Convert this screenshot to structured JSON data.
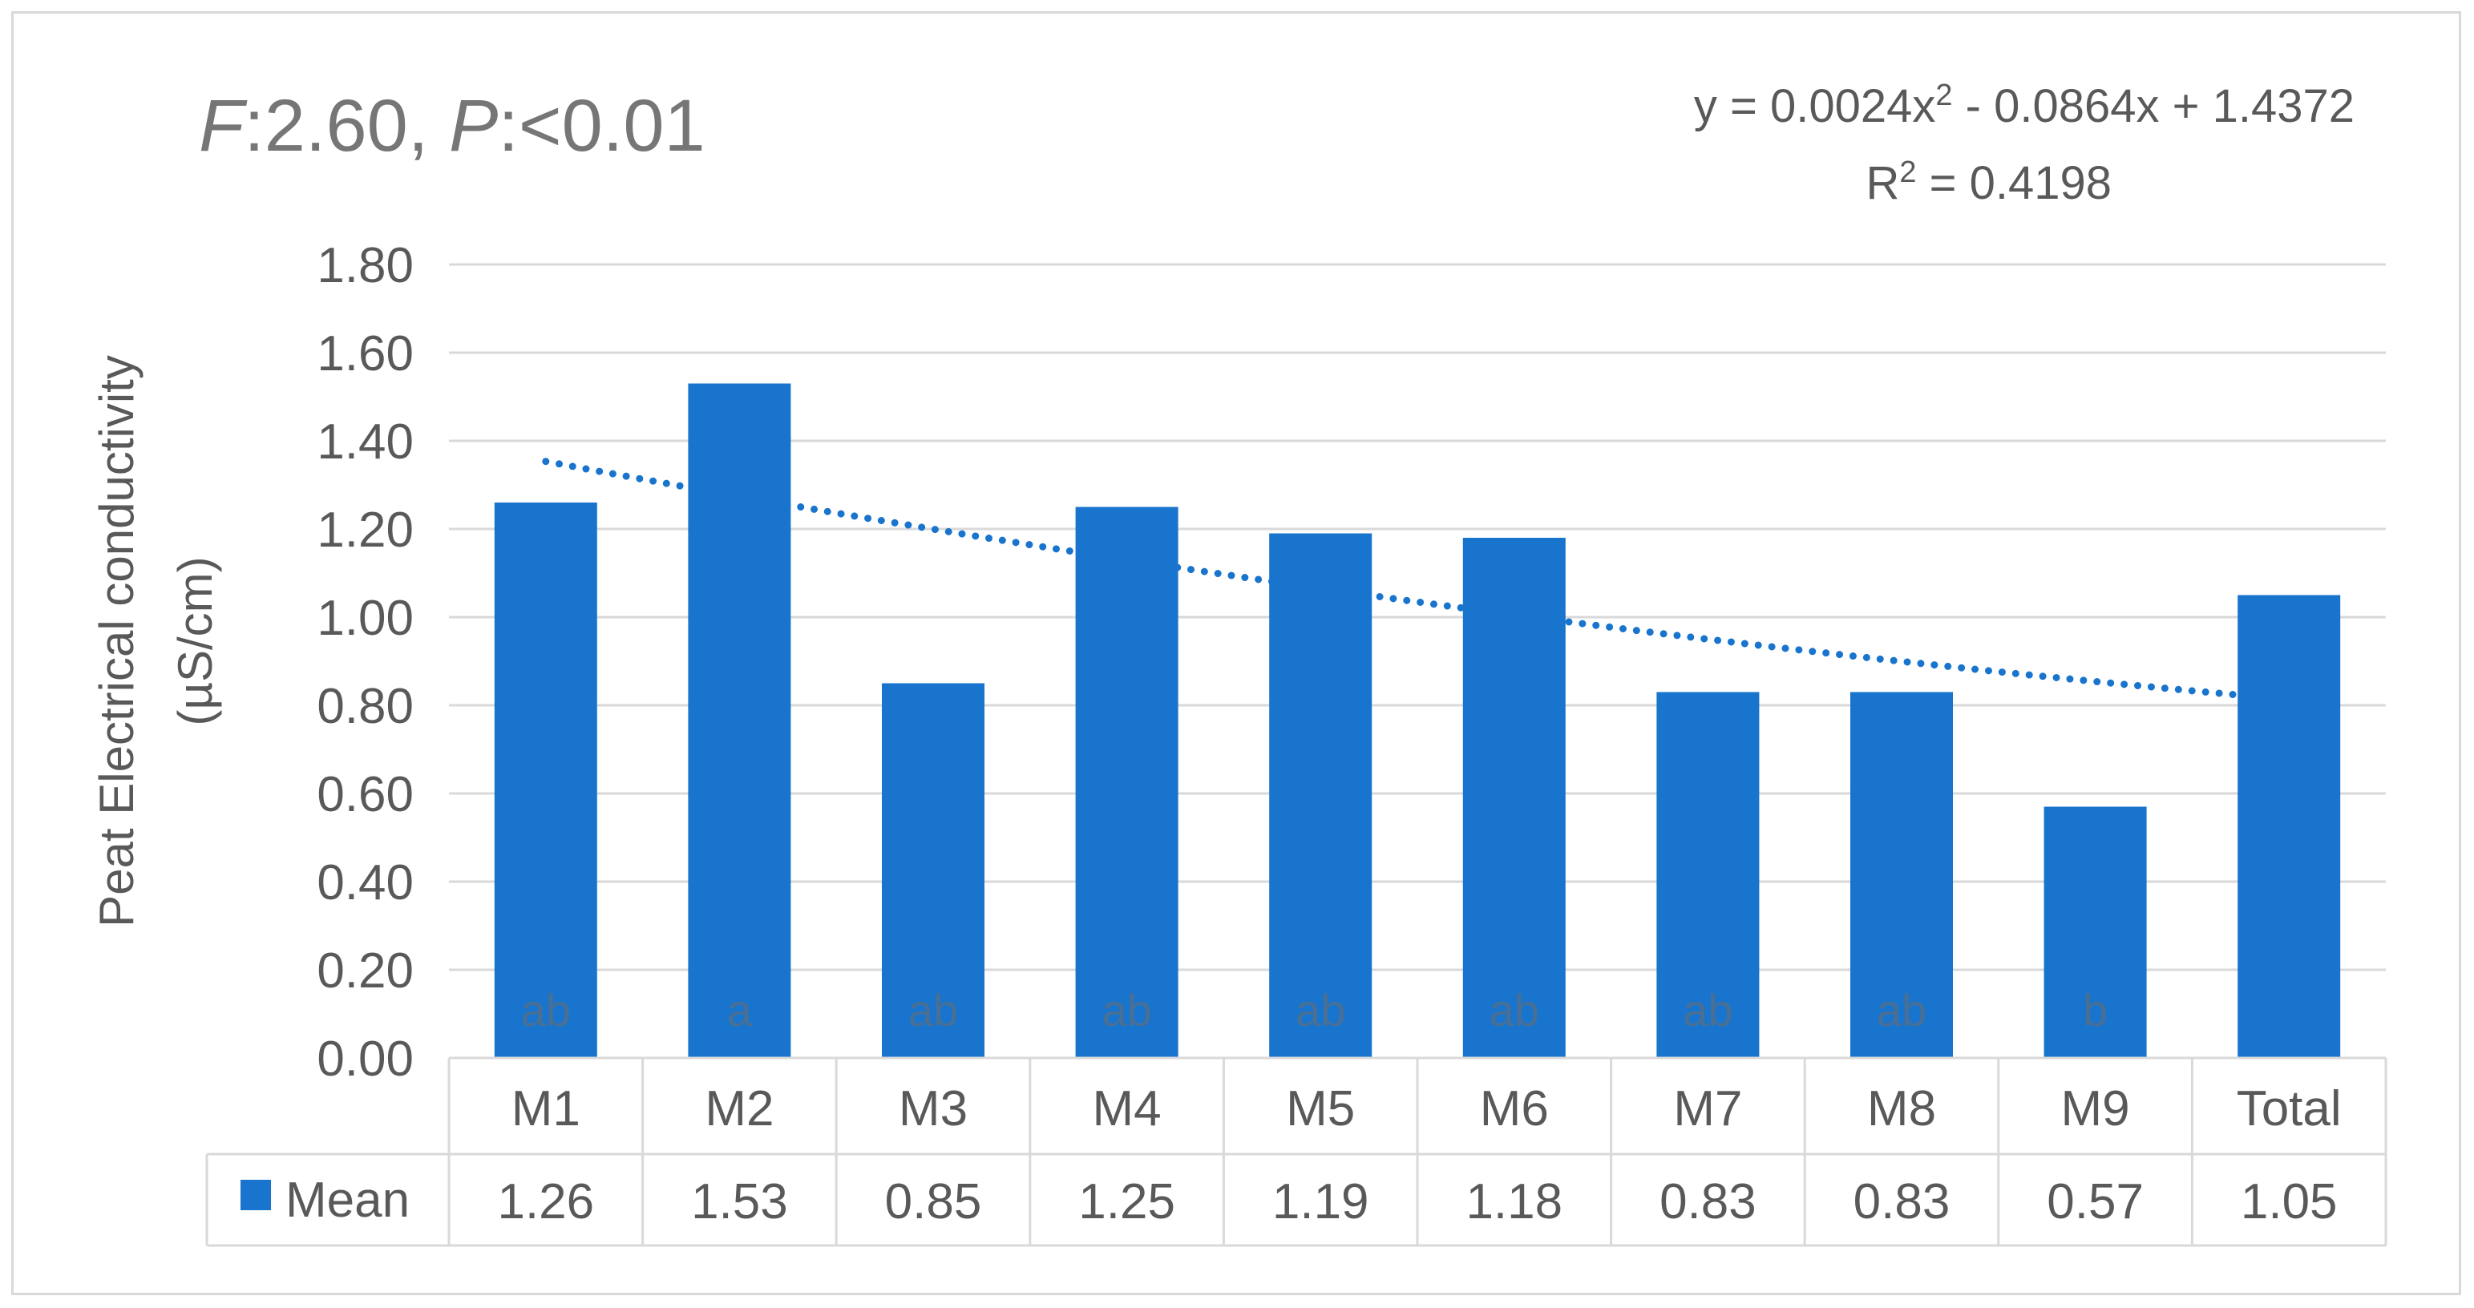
{
  "annotation": {
    "f_label": "F",
    "f_value": ":2.60, ",
    "p_label": "P",
    "p_value": ":<0.01"
  },
  "trendline": {
    "equation_prefix": "y = 0.0024x",
    "equation_sup": "2",
    "equation_suffix": " - 0.0864x + 1.4372",
    "r2_prefix": "R",
    "r2_sup": "2",
    "r2_suffix": " = 0.4198",
    "coefficients": {
      "a": 0.0024,
      "b": -0.0864,
      "c": 1.4372
    },
    "x_range": [
      1,
      10
    ]
  },
  "colors": {
    "bar": "#1874CD",
    "trend": "#1874CD",
    "grid": "#d9d9d9",
    "text": "#595959",
    "group_letter": "#4a6f94"
  },
  "chart_data": {
    "type": "bar",
    "ylabel_line1": "Peat Electrical conductivity",
    "ylabel_line2": "(µS/cm)",
    "ylim": [
      0,
      1.8
    ],
    "yticks": [
      "0.00",
      "0.20",
      "0.40",
      "0.60",
      "0.80",
      "1.00",
      "1.20",
      "1.40",
      "1.60",
      "1.80"
    ],
    "ytick_values": [
      0,
      0.2,
      0.4,
      0.6,
      0.8,
      1.0,
      1.2,
      1.4,
      1.6,
      1.8
    ],
    "grid": true,
    "categories": [
      "M1",
      "M2",
      "M3",
      "M4",
      "M5",
      "M6",
      "M7",
      "M8",
      "M9",
      "Total"
    ],
    "series": [
      {
        "name": "Mean",
        "values": [
          1.26,
          1.53,
          0.85,
          1.25,
          1.19,
          1.18,
          0.83,
          0.83,
          0.57,
          1.05
        ]
      }
    ],
    "table_values": [
      "1.26",
      "1.53",
      "0.85",
      "1.25",
      "1.19",
      "1.18",
      "0.83",
      "0.83",
      "0.57",
      "1.05"
    ],
    "group_letters": [
      "ab",
      "a",
      "ab",
      "ab",
      "ab",
      "ab",
      "ab",
      "ab",
      "b",
      ""
    ]
  }
}
